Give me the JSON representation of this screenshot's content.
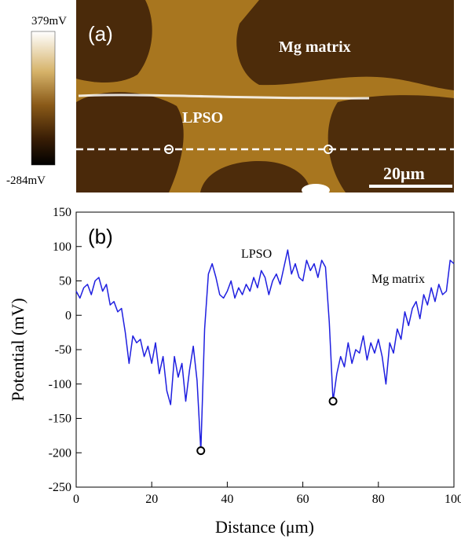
{
  "image_panel": {
    "label": "(a)",
    "annotations": [
      "Mg matrix",
      "LPSO"
    ],
    "scale_bar": "20μm",
    "colorbar": {
      "max_label": "379mV",
      "min_label": "-284mV"
    }
  },
  "chart_data": {
    "type": "line",
    "label": "(b)",
    "annotations": [
      "LPSO",
      "Mg matrix"
    ],
    "x_label": "Distance (μm)",
    "y_label": "Potential (mV)",
    "xlim": [
      0,
      100
    ],
    "xticks": [
      0,
      20,
      40,
      60,
      80,
      100
    ],
    "ylim": [
      -250,
      150
    ],
    "yticks": [
      -250,
      -200,
      -150,
      -100,
      -50,
      0,
      50,
      100,
      150
    ],
    "x": [
      0,
      1,
      2,
      3,
      4,
      5,
      6,
      7,
      8,
      9,
      10,
      11,
      12,
      13,
      14,
      15,
      16,
      17,
      18,
      19,
      20,
      21,
      22,
      23,
      24,
      25,
      26,
      27,
      28,
      29,
      30,
      31,
      32,
      33,
      34,
      35,
      36,
      37,
      38,
      39,
      40,
      41,
      42,
      43,
      44,
      45,
      46,
      47,
      48,
      49,
      50,
      51,
      52,
      53,
      54,
      55,
      56,
      57,
      58,
      59,
      60,
      61,
      62,
      63,
      64,
      65,
      66,
      67,
      68,
      69,
      70,
      71,
      72,
      73,
      74,
      75,
      76,
      77,
      78,
      79,
      80,
      81,
      82,
      83,
      84,
      85,
      86,
      87,
      88,
      89,
      90,
      91,
      92,
      93,
      94,
      95,
      96,
      97,
      98,
      99,
      100
    ],
    "series": [
      {
        "color": "#1f1fe0",
        "values": [
          35,
          25,
          40,
          45,
          30,
          50,
          55,
          35,
          45,
          15,
          20,
          5,
          10,
          -25,
          -70,
          -30,
          -40,
          -35,
          -60,
          -45,
          -70,
          -40,
          -85,
          -60,
          -110,
          -130,
          -60,
          -90,
          -70,
          -125,
          -80,
          -45,
          -95,
          -197,
          -20,
          60,
          75,
          55,
          30,
          25,
          35,
          50,
          25,
          40,
          30,
          45,
          35,
          55,
          40,
          65,
          55,
          30,
          50,
          60,
          45,
          70,
          95,
          60,
          75,
          55,
          50,
          80,
          65,
          75,
          55,
          80,
          70,
          -10,
          -125,
          -85,
          -60,
          -75,
          -40,
          -70,
          -50,
          -55,
          -30,
          -65,
          -40,
          -55,
          -35,
          -60,
          -100,
          -40,
          -55,
          -20,
          -35,
          5,
          -15,
          10,
          20,
          -5,
          30,
          15,
          40,
          20,
          45,
          30,
          35,
          80,
          75
        ]
      }
    ],
    "markers": {
      "color": "#000000",
      "x": [
        33,
        68
      ],
      "values": [
        -197,
        -125
      ]
    }
  }
}
